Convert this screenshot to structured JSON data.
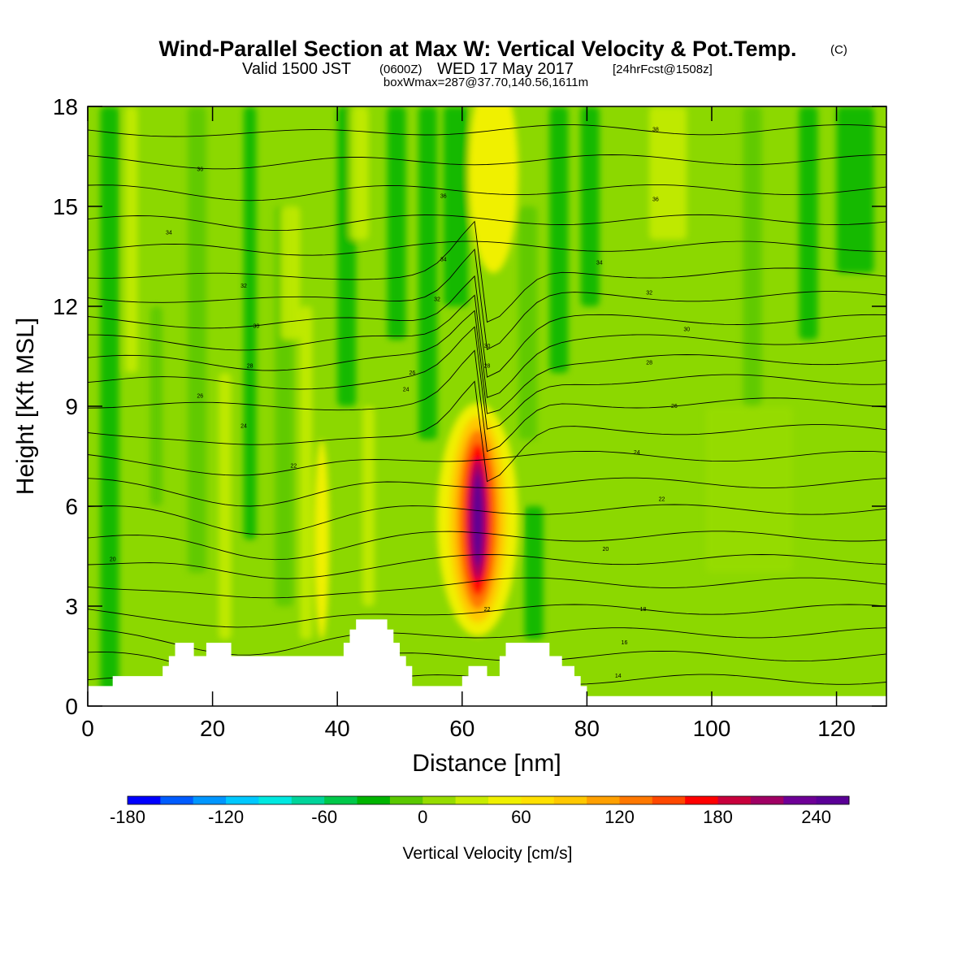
{
  "title": {
    "main": "Wind-Parallel Section at Max W: Vertical Velocity & Pot.Temp.",
    "copyright": "(C)",
    "valid_prefix": "Valid 1500 JST",
    "valid_zulu": "(0600Z)",
    "valid_date": "WED 17 May 2017",
    "forecast": "[24hrFcst@1508z]",
    "box_max": "boxWmax=287@37.70,140.56,1611m"
  },
  "colorbar": {
    "label": "Vertical Velocity [cm/s]",
    "tick_labels": [
      "-180",
      "-120",
      "-60",
      "0",
      "60",
      "120",
      "180",
      "240"
    ],
    "tick_values": [
      -180,
      -120,
      -60,
      0,
      60,
      120,
      180,
      240
    ],
    "range": [
      -180,
      260
    ],
    "step": 20,
    "colors": [
      "#0000ff",
      "#005cff",
      "#0096ff",
      "#00c8ff",
      "#00e8e0",
      "#00d49a",
      "#00c84a",
      "#00b400",
      "#5ac800",
      "#96dc00",
      "#c8ec00",
      "#f0f000",
      "#ffe000",
      "#ffc800",
      "#ffa000",
      "#ff7800",
      "#ff4800",
      "#ff0000",
      "#c8003c",
      "#a00064",
      "#6e0096",
      "#5a0096"
    ]
  },
  "chart_data": {
    "type": "heatmap",
    "xlabel": "Distance [nm]",
    "ylabel": "Height [Kft MSL]",
    "xlim": [
      0,
      128
    ],
    "ylim": [
      0,
      18
    ],
    "x_ticks": [
      0,
      20,
      40,
      60,
      80,
      100,
      120
    ],
    "y_ticks": [
      0,
      3,
      6,
      9,
      12,
      15,
      18
    ],
    "max_updraft": {
      "x": 63,
      "y_range": [
        2.5,
        9.5
      ],
      "value": 287
    },
    "terrain": [
      [
        0,
        0.6
      ],
      [
        4,
        0.6
      ],
      [
        4,
        0.9
      ],
      [
        12,
        0.9
      ],
      [
        12,
        1.2
      ],
      [
        13,
        1.2
      ],
      [
        13,
        1.5
      ],
      [
        14,
        1.5
      ],
      [
        14,
        1.9
      ],
      [
        17,
        1.9
      ],
      [
        17,
        1.5
      ],
      [
        19,
        1.5
      ],
      [
        19,
        1.9
      ],
      [
        23,
        1.9
      ],
      [
        23,
        1.5
      ],
      [
        41,
        1.5
      ],
      [
        41,
        1.9
      ],
      [
        42,
        1.9
      ],
      [
        42,
        2.3
      ],
      [
        43,
        2.3
      ],
      [
        43,
        2.6
      ],
      [
        48,
        2.6
      ],
      [
        48,
        2.3
      ],
      [
        49,
        2.3
      ],
      [
        49,
        1.9
      ],
      [
        50,
        1.9
      ],
      [
        50,
        1.5
      ],
      [
        51,
        1.5
      ],
      [
        51,
        1.2
      ],
      [
        52,
        1.2
      ],
      [
        52,
        0.6
      ],
      [
        60,
        0.6
      ],
      [
        60,
        0.9
      ],
      [
        61,
        0.9
      ],
      [
        61,
        1.2
      ],
      [
        64,
        1.2
      ],
      [
        64,
        0.9
      ],
      [
        66,
        0.9
      ],
      [
        66,
        1.5
      ],
      [
        67,
        1.5
      ],
      [
        67,
        1.9
      ],
      [
        74,
        1.9
      ],
      [
        74,
        1.5
      ],
      [
        76,
        1.5
      ],
      [
        76,
        1.2
      ],
      [
        78,
        1.2
      ],
      [
        78,
        0.9
      ],
      [
        79,
        0.9
      ],
      [
        79,
        0.6
      ],
      [
        80,
        0.6
      ],
      [
        80,
        0.3
      ],
      [
        128,
        0.3
      ]
    ],
    "contour_labels": [
      {
        "x": 91,
        "y": 17.3,
        "text": "38"
      },
      {
        "x": 18,
        "y": 16.1,
        "text": "36"
      },
      {
        "x": 57,
        "y": 15.3,
        "text": "36"
      },
      {
        "x": 91,
        "y": 15.2,
        "text": "36"
      },
      {
        "x": 13,
        "y": 14.2,
        "text": "34"
      },
      {
        "x": 57,
        "y": 13.4,
        "text": "34"
      },
      {
        "x": 82,
        "y": 13.3,
        "text": "34"
      },
      {
        "x": 25,
        "y": 12.6,
        "text": "32"
      },
      {
        "x": 56,
        "y": 12.2,
        "text": "32"
      },
      {
        "x": 90,
        "y": 12.4,
        "text": "32"
      },
      {
        "x": 27,
        "y": 11.4,
        "text": "30"
      },
      {
        "x": 96,
        "y": 11.3,
        "text": "30"
      },
      {
        "x": 64,
        "y": 10.8,
        "text": "30"
      },
      {
        "x": 26,
        "y": 10.2,
        "text": "28"
      },
      {
        "x": 64,
        "y": 10.2,
        "text": "28"
      },
      {
        "x": 90,
        "y": 10.3,
        "text": "28"
      },
      {
        "x": 52,
        "y": 10,
        "text": "26"
      },
      {
        "x": 18,
        "y": 9.3,
        "text": "26"
      },
      {
        "x": 94,
        "y": 9,
        "text": "26"
      },
      {
        "x": 51,
        "y": 9.5,
        "text": "24"
      },
      {
        "x": 25,
        "y": 8.4,
        "text": "24"
      },
      {
        "x": 88,
        "y": 7.6,
        "text": "24"
      },
      {
        "x": 33,
        "y": 7.2,
        "text": "22"
      },
      {
        "x": 92,
        "y": 6.2,
        "text": "22"
      },
      {
        "x": 64,
        "y": 2.9,
        "text": "22"
      },
      {
        "x": 4,
        "y": 4.4,
        "text": "20"
      },
      {
        "x": 83,
        "y": 4.7,
        "text": "20"
      },
      {
        "x": 89,
        "y": 2.9,
        "text": "18"
      },
      {
        "x": 86,
        "y": 1.9,
        "text": "16"
      },
      {
        "x": 85,
        "y": 0.9,
        "text": "14"
      }
    ]
  }
}
